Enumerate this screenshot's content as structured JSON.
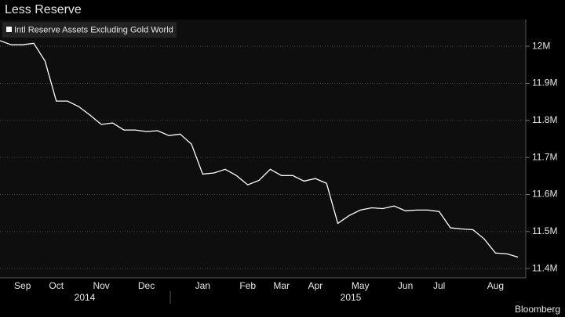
{
  "chart_data": {
    "type": "line",
    "title": "Less Reserve",
    "source": "Bloomberg",
    "categories": [
      null,
      null,
      "Sep",
      null,
      null,
      "Oct",
      null,
      null,
      null,
      "Nov",
      null,
      null,
      null,
      "Dec",
      null,
      null,
      null,
      null,
      "Jan",
      null,
      null,
      null,
      "Feb",
      null,
      null,
      "Mar",
      null,
      null,
      "Apr",
      null,
      null,
      null,
      "May",
      null,
      null,
      null,
      "Jun",
      null,
      null,
      "Jul",
      null,
      null,
      null,
      null,
      "Aug",
      null,
      null
    ],
    "years": [
      "2014",
      "2015"
    ],
    "series": [
      {
        "name": "Intl Reserve Assets Excluding Gold World",
        "color": "#ffffff",
        "values": [
          12.015,
          12.004,
          12.004,
          12.008,
          11.96,
          11.852,
          11.852,
          11.837,
          11.814,
          11.789,
          11.793,
          11.774,
          11.774,
          11.77,
          11.772,
          11.759,
          11.763,
          11.736,
          11.655,
          11.658,
          11.668,
          11.651,
          11.626,
          11.638,
          11.668,
          11.651,
          11.651,
          11.636,
          11.643,
          11.63,
          11.522,
          11.543,
          11.558,
          11.564,
          11.562,
          11.569,
          11.556,
          11.558,
          11.558,
          11.554,
          11.51,
          11.507,
          11.505,
          11.48,
          11.442,
          11.44,
          11.431
        ]
      }
    ],
    "ylim": [
      11.375,
      12.072
    ],
    "yticks": [
      {
        "value": 11.4,
        "label": "11.4M"
      },
      {
        "value": 11.5,
        "label": "11.5M"
      },
      {
        "value": 11.6,
        "label": "11.6M"
      },
      {
        "value": 11.7,
        "label": "11.7M"
      },
      {
        "value": 11.8,
        "label": "11.8M"
      },
      {
        "value": 11.9,
        "label": "11.9M"
      },
      {
        "value": 12,
        "label": "12M"
      }
    ],
    "grid": true
  }
}
